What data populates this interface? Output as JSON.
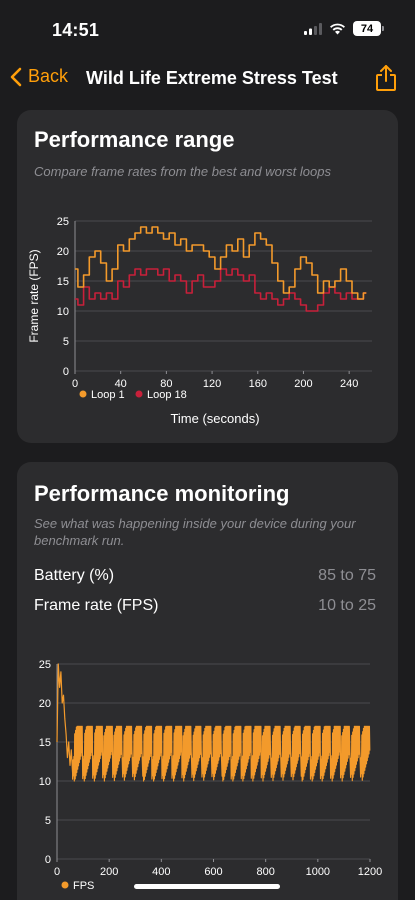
{
  "status_bar": {
    "time": "14:51",
    "battery": "74"
  },
  "nav": {
    "back_label": "Back",
    "title": "Wild Life Extreme Stress Test",
    "share_icon": "share-icon"
  },
  "colors": {
    "accent": "#ff9f0a",
    "loop1": "#f39a2b",
    "loop18": "#c8203a",
    "fps": "#f39a2b",
    "card": "#2c2c2e"
  },
  "performance_range": {
    "title": "Performance range",
    "subtitle": "Compare frame rates from the best and worst loops"
  },
  "performance_monitoring": {
    "title": "Performance monitoring",
    "subtitle": "See what was happening inside your device during your benchmark run.",
    "stats": [
      {
        "label": "Battery (%)",
        "value": "85 to 75"
      },
      {
        "label": "Frame rate (FPS)",
        "value": "10 to 25"
      }
    ]
  },
  "chart_data": [
    {
      "type": "line",
      "title": "",
      "xlabel": "Time (seconds)",
      "ylabel": "Frame rate (FPS)",
      "xlim": [
        0,
        260
      ],
      "ylim": [
        0,
        25
      ],
      "x_ticks": [
        "0",
        "40",
        "80",
        "120",
        "160",
        "200",
        "240"
      ],
      "y_ticks": [
        "0",
        "5",
        "10",
        "15",
        "20",
        "25"
      ],
      "grid": true,
      "legend": "bottom-left",
      "series": [
        {
          "name": "Loop 1",
          "color": "#f39a2b",
          "x": [
            0,
            5,
            10,
            15,
            20,
            25,
            30,
            35,
            40,
            45,
            50,
            55,
            60,
            65,
            70,
            75,
            80,
            85,
            90,
            95,
            100,
            105,
            110,
            115,
            120,
            125,
            130,
            135,
            140,
            145,
            150,
            155,
            160,
            165,
            170,
            175,
            180,
            185,
            190,
            195,
            200,
            205,
            210,
            215,
            220,
            225,
            230,
            235,
            240,
            245,
            250,
            255
          ],
          "y": [
            17,
            14,
            16,
            19,
            20,
            18,
            15,
            17,
            21,
            20,
            22,
            23,
            24,
            23,
            24,
            23,
            22,
            23,
            21,
            22,
            20,
            21,
            21,
            20,
            19,
            17,
            19,
            21,
            20,
            22,
            19,
            21,
            23,
            22,
            21,
            18,
            15,
            13,
            14,
            17,
            19,
            18,
            16,
            13,
            15,
            14,
            15,
            17,
            15,
            13,
            12,
            13
          ]
        },
        {
          "name": "Loop 18",
          "color": "#c8203a",
          "x": [
            0,
            5,
            10,
            15,
            20,
            25,
            30,
            35,
            40,
            45,
            50,
            55,
            60,
            65,
            70,
            75,
            80,
            85,
            90,
            95,
            100,
            105,
            110,
            115,
            120,
            125,
            130,
            135,
            140,
            145,
            150,
            155,
            160,
            165,
            170,
            175,
            180,
            185,
            190,
            195,
            200,
            205,
            210,
            215,
            220,
            225,
            230,
            235,
            240,
            245,
            250,
            255
          ],
          "y": [
            12,
            11,
            14,
            12,
            13,
            12,
            13,
            12,
            15,
            14,
            16,
            17,
            16,
            17,
            17,
            16,
            17,
            15,
            16,
            15,
            13,
            15,
            16,
            14,
            14,
            15,
            17,
            16,
            17,
            16,
            15,
            16,
            13,
            12,
            13,
            12,
            11,
            12,
            13,
            12,
            11,
            10,
            10,
            11,
            13,
            14,
            13,
            12,
            13,
            12,
            12,
            13
          ]
        }
      ]
    },
    {
      "type": "line",
      "title": "",
      "xlabel": "",
      "ylabel": "",
      "xlim": [
        0,
        1200
      ],
      "ylim": [
        0,
        25
      ],
      "x_ticks": [
        "0",
        "200",
        "400",
        "600",
        "800",
        "1000",
        "1200"
      ],
      "y_ticks": [
        "0",
        "5",
        "10",
        "15",
        "20",
        "25"
      ],
      "grid": true,
      "legend": "bottom-left",
      "loop_period_seconds": 38,
      "loop_fps_range": [
        10,
        17
      ],
      "series": [
        {
          "name": "FPS",
          "color": "#f39a2b",
          "x": [
            0,
            5,
            10,
            15,
            20,
            25,
            30,
            35,
            40,
            45,
            50,
            55,
            60
          ],
          "y": [
            15,
            25,
            22,
            24,
            20,
            21,
            18,
            16,
            13,
            15,
            12,
            14,
            11
          ]
        }
      ]
    }
  ]
}
